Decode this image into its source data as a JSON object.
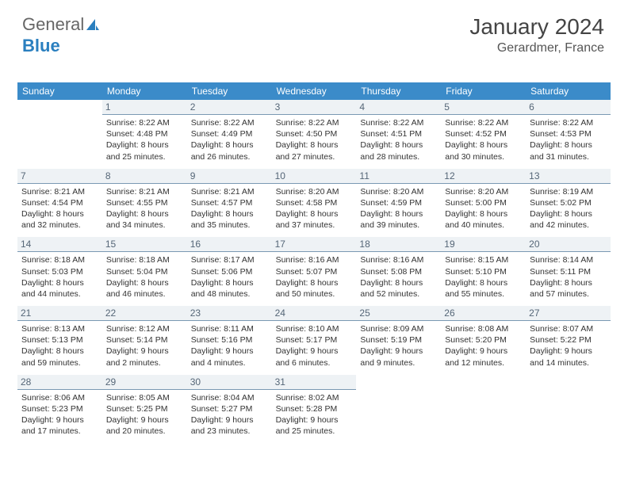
{
  "brand": {
    "part1": "General",
    "part2": "Blue"
  },
  "title": "January 2024",
  "location": "Gerardmer, France",
  "colors": {
    "header_bg": "#3b8bc9",
    "header_text": "#ffffff",
    "daynum_bg": "#eef2f5",
    "daynum_border": "#7a99b3",
    "body_text": "#333333"
  },
  "daynames": [
    "Sunday",
    "Monday",
    "Tuesday",
    "Wednesday",
    "Thursday",
    "Friday",
    "Saturday"
  ],
  "weeks": [
    [
      null,
      {
        "n": "1",
        "sr": "Sunrise: 8:22 AM",
        "ss": "Sunset: 4:48 PM",
        "d1": "Daylight: 8 hours",
        "d2": "and 25 minutes."
      },
      {
        "n": "2",
        "sr": "Sunrise: 8:22 AM",
        "ss": "Sunset: 4:49 PM",
        "d1": "Daylight: 8 hours",
        "d2": "and 26 minutes."
      },
      {
        "n": "3",
        "sr": "Sunrise: 8:22 AM",
        "ss": "Sunset: 4:50 PM",
        "d1": "Daylight: 8 hours",
        "d2": "and 27 minutes."
      },
      {
        "n": "4",
        "sr": "Sunrise: 8:22 AM",
        "ss": "Sunset: 4:51 PM",
        "d1": "Daylight: 8 hours",
        "d2": "and 28 minutes."
      },
      {
        "n": "5",
        "sr": "Sunrise: 8:22 AM",
        "ss": "Sunset: 4:52 PM",
        "d1": "Daylight: 8 hours",
        "d2": "and 30 minutes."
      },
      {
        "n": "6",
        "sr": "Sunrise: 8:22 AM",
        "ss": "Sunset: 4:53 PM",
        "d1": "Daylight: 8 hours",
        "d2": "and 31 minutes."
      }
    ],
    [
      {
        "n": "7",
        "sr": "Sunrise: 8:21 AM",
        "ss": "Sunset: 4:54 PM",
        "d1": "Daylight: 8 hours",
        "d2": "and 32 minutes."
      },
      {
        "n": "8",
        "sr": "Sunrise: 8:21 AM",
        "ss": "Sunset: 4:55 PM",
        "d1": "Daylight: 8 hours",
        "d2": "and 34 minutes."
      },
      {
        "n": "9",
        "sr": "Sunrise: 8:21 AM",
        "ss": "Sunset: 4:57 PM",
        "d1": "Daylight: 8 hours",
        "d2": "and 35 minutes."
      },
      {
        "n": "10",
        "sr": "Sunrise: 8:20 AM",
        "ss": "Sunset: 4:58 PM",
        "d1": "Daylight: 8 hours",
        "d2": "and 37 minutes."
      },
      {
        "n": "11",
        "sr": "Sunrise: 8:20 AM",
        "ss": "Sunset: 4:59 PM",
        "d1": "Daylight: 8 hours",
        "d2": "and 39 minutes."
      },
      {
        "n": "12",
        "sr": "Sunrise: 8:20 AM",
        "ss": "Sunset: 5:00 PM",
        "d1": "Daylight: 8 hours",
        "d2": "and 40 minutes."
      },
      {
        "n": "13",
        "sr": "Sunrise: 8:19 AM",
        "ss": "Sunset: 5:02 PM",
        "d1": "Daylight: 8 hours",
        "d2": "and 42 minutes."
      }
    ],
    [
      {
        "n": "14",
        "sr": "Sunrise: 8:18 AM",
        "ss": "Sunset: 5:03 PM",
        "d1": "Daylight: 8 hours",
        "d2": "and 44 minutes."
      },
      {
        "n": "15",
        "sr": "Sunrise: 8:18 AM",
        "ss": "Sunset: 5:04 PM",
        "d1": "Daylight: 8 hours",
        "d2": "and 46 minutes."
      },
      {
        "n": "16",
        "sr": "Sunrise: 8:17 AM",
        "ss": "Sunset: 5:06 PM",
        "d1": "Daylight: 8 hours",
        "d2": "and 48 minutes."
      },
      {
        "n": "17",
        "sr": "Sunrise: 8:16 AM",
        "ss": "Sunset: 5:07 PM",
        "d1": "Daylight: 8 hours",
        "d2": "and 50 minutes."
      },
      {
        "n": "18",
        "sr": "Sunrise: 8:16 AM",
        "ss": "Sunset: 5:08 PM",
        "d1": "Daylight: 8 hours",
        "d2": "and 52 minutes."
      },
      {
        "n": "19",
        "sr": "Sunrise: 8:15 AM",
        "ss": "Sunset: 5:10 PM",
        "d1": "Daylight: 8 hours",
        "d2": "and 55 minutes."
      },
      {
        "n": "20",
        "sr": "Sunrise: 8:14 AM",
        "ss": "Sunset: 5:11 PM",
        "d1": "Daylight: 8 hours",
        "d2": "and 57 minutes."
      }
    ],
    [
      {
        "n": "21",
        "sr": "Sunrise: 8:13 AM",
        "ss": "Sunset: 5:13 PM",
        "d1": "Daylight: 8 hours",
        "d2": "and 59 minutes."
      },
      {
        "n": "22",
        "sr": "Sunrise: 8:12 AM",
        "ss": "Sunset: 5:14 PM",
        "d1": "Daylight: 9 hours",
        "d2": "and 2 minutes."
      },
      {
        "n": "23",
        "sr": "Sunrise: 8:11 AM",
        "ss": "Sunset: 5:16 PM",
        "d1": "Daylight: 9 hours",
        "d2": "and 4 minutes."
      },
      {
        "n": "24",
        "sr": "Sunrise: 8:10 AM",
        "ss": "Sunset: 5:17 PM",
        "d1": "Daylight: 9 hours",
        "d2": "and 6 minutes."
      },
      {
        "n": "25",
        "sr": "Sunrise: 8:09 AM",
        "ss": "Sunset: 5:19 PM",
        "d1": "Daylight: 9 hours",
        "d2": "and 9 minutes."
      },
      {
        "n": "26",
        "sr": "Sunrise: 8:08 AM",
        "ss": "Sunset: 5:20 PM",
        "d1": "Daylight: 9 hours",
        "d2": "and 12 minutes."
      },
      {
        "n": "27",
        "sr": "Sunrise: 8:07 AM",
        "ss": "Sunset: 5:22 PM",
        "d1": "Daylight: 9 hours",
        "d2": "and 14 minutes."
      }
    ],
    [
      {
        "n": "28",
        "sr": "Sunrise: 8:06 AM",
        "ss": "Sunset: 5:23 PM",
        "d1": "Daylight: 9 hours",
        "d2": "and 17 minutes."
      },
      {
        "n": "29",
        "sr": "Sunrise: 8:05 AM",
        "ss": "Sunset: 5:25 PM",
        "d1": "Daylight: 9 hours",
        "d2": "and 20 minutes."
      },
      {
        "n": "30",
        "sr": "Sunrise: 8:04 AM",
        "ss": "Sunset: 5:27 PM",
        "d1": "Daylight: 9 hours",
        "d2": "and 23 minutes."
      },
      {
        "n": "31",
        "sr": "Sunrise: 8:02 AM",
        "ss": "Sunset: 5:28 PM",
        "d1": "Daylight: 9 hours",
        "d2": "and 25 minutes."
      },
      null,
      null,
      null
    ]
  ]
}
